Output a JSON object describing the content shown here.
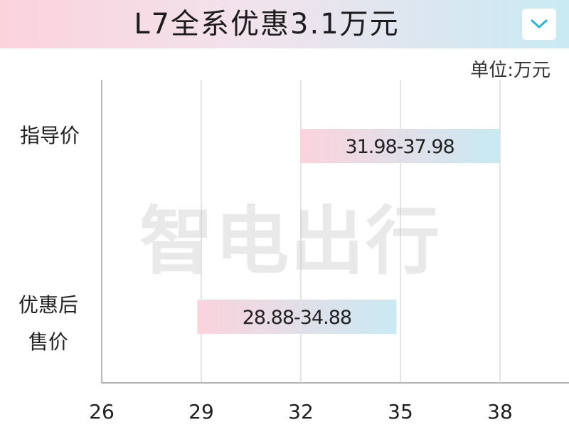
{
  "header": {
    "title": "L7全系优惠3.1万元",
    "dropdown_icon": "chevron-down-icon"
  },
  "unit_label": "单位:万元",
  "watermark": "智电出行",
  "colors": {
    "bar_start": "#fbd3dd",
    "bar_end": "#c9eaf3",
    "accent": "#29b6d8"
  },
  "chart_data": {
    "type": "bar",
    "orientation": "horizontal",
    "categories": [
      "指导价",
      "优惠后售价"
    ],
    "ranges": [
      [
        31.98,
        37.98
      ],
      [
        28.88,
        34.88
      ]
    ],
    "labels": [
      "31.98-37.98",
      "28.88-34.88"
    ],
    "xlim": [
      26,
      40
    ],
    "ticks": [
      26,
      29,
      32,
      35,
      38
    ],
    "grid": true,
    "title": "L7全系优惠3.1万元",
    "xlabel": "",
    "ylabel": "单位:万元"
  }
}
